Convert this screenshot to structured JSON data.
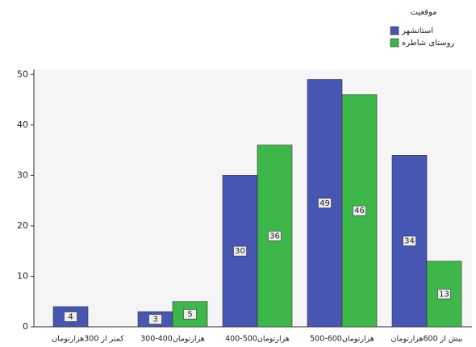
{
  "chart_data": {
    "type": "bar",
    "legend_title": "موقعیت",
    "categories": [
      "کمتر از 300هزارتومان",
      "300-400هزارتومان",
      "400-500هزارتومان",
      "500-600هزارتومان",
      "بیش از 600هزارتومان"
    ],
    "series": [
      {
        "name": "استانشهر",
        "color": "#4756b3",
        "values": [
          4,
          3,
          30,
          49,
          34
        ]
      },
      {
        "name": "روستای شاطره",
        "color": "#3db64a",
        "values": [
          null,
          5,
          36,
          46,
          13
        ]
      }
    ],
    "ylim": [
      0,
      51
    ],
    "yticks": [
      0,
      10,
      20,
      30,
      40,
      50
    ],
    "legend": "top-right"
  }
}
